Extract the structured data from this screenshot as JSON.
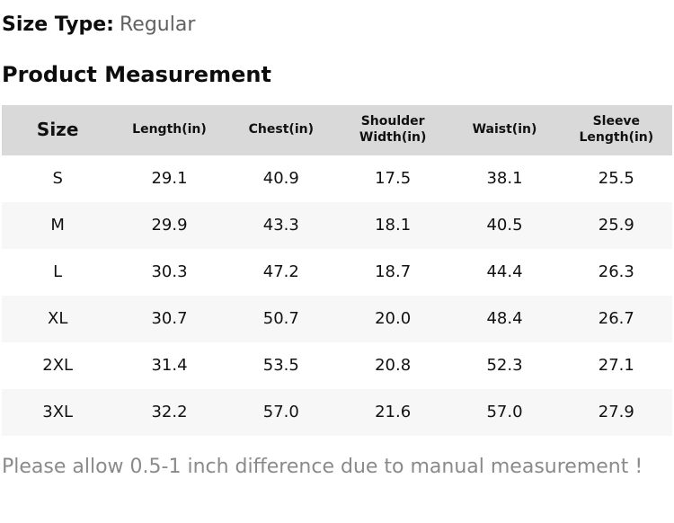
{
  "page": {
    "size_type_label": "Size Type:",
    "size_type_value": "Regular",
    "section_title": "Product Measurement",
    "note": "Please allow 0.5-1 inch difference due to manual measurement !"
  },
  "table": {
    "headers": [
      "Size",
      "Length(in)",
      "Chest(in)",
      "Shoulder Width(in)",
      "Waist(in)",
      "Sleeve Length(in)"
    ],
    "rows": [
      [
        "S",
        "29.1",
        "40.9",
        "17.5",
        "38.1",
        "25.5"
      ],
      [
        "M",
        "29.9",
        "43.3",
        "18.1",
        "40.5",
        "25.9"
      ],
      [
        "L",
        "30.3",
        "47.2",
        "18.7",
        "44.4",
        "26.3"
      ],
      [
        "XL",
        "30.7",
        "50.7",
        "20.0",
        "48.4",
        "26.7"
      ],
      [
        "2XL",
        "31.4",
        "53.5",
        "20.8",
        "52.3",
        "27.1"
      ],
      [
        "3XL",
        "32.2",
        "57.0",
        "21.6",
        "57.0",
        "27.9"
      ]
    ]
  },
  "colors": {
    "header_bg": "#d9d9d9",
    "row_alt_bg": "#f7f7f7",
    "value_text": "#616161",
    "note_text": "#8a8a8a"
  }
}
